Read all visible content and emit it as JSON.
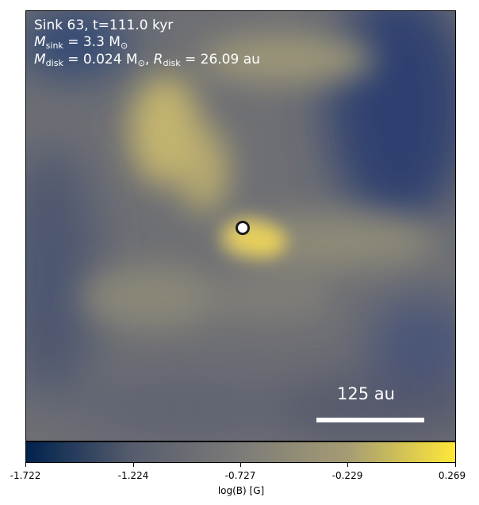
{
  "annotations": {
    "line1": "Sink 63, t=111.0 kyr",
    "msink_symbol": "M",
    "msink_sub": "sink",
    "msink_value": " = 3.3 M",
    "msink_unit_sub": "⊙",
    "mdisk_symbol": "M",
    "mdisk_sub": "disk",
    "mdisk_value": " = 0.024 M",
    "mdisk_unit_sub": "⊙",
    "rdisk_sep": ", ",
    "rdisk_symbol": "R",
    "rdisk_sub": "disk",
    "rdisk_value": " = 26.09 au"
  },
  "scalebar": {
    "label": "125 au"
  },
  "colorbar": {
    "label": "log(B) [G]",
    "ticks": [
      "-1.722",
      "-1.224",
      "-0.727",
      "-0.229",
      "0.269"
    ],
    "range": [
      -1.722,
      0.269
    ],
    "colormap": [
      "#00224e",
      "#575d6d",
      "#7c7b78",
      "#a59c74",
      "#fee838"
    ]
  }
}
